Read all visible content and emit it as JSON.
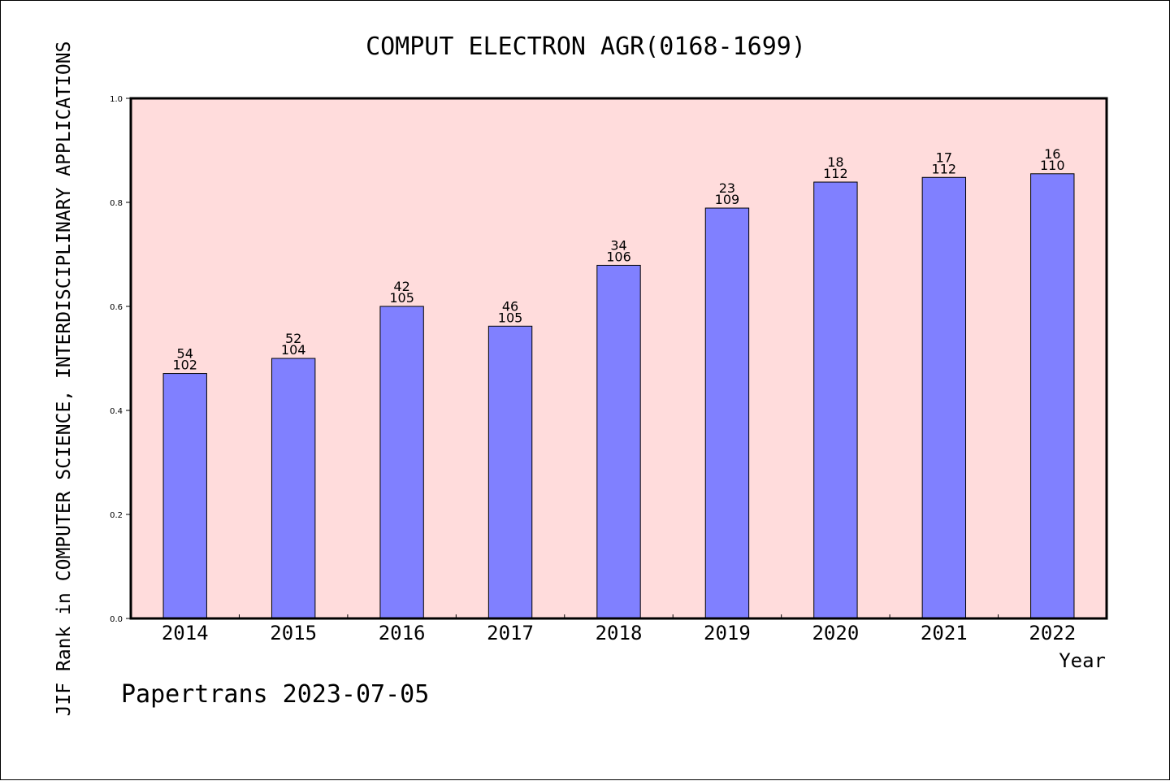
{
  "chart_data": {
    "type": "bar",
    "title": "COMPUT ELECTRON AGR(0168-1699)",
    "ylabel": "JIF Rank in COMPUTER SCIENCE, INTERDISCIPLINARY APPLICATIONS",
    "xlabel": "Year",
    "footer": "Papertrans 2023-07-05",
    "ylim": [
      0,
      1.0
    ],
    "yticks": [
      "0.0",
      "0.2",
      "0.4",
      "0.6",
      "0.8",
      "1.0"
    ],
    "categories": [
      "2014",
      "2015",
      "2016",
      "2017",
      "2018",
      "2019",
      "2020",
      "2021",
      "2022"
    ],
    "values": [
      0.471,
      0.5,
      0.6,
      0.562,
      0.679,
      0.789,
      0.839,
      0.848,
      0.855
    ],
    "rank": [
      "54",
      "52",
      "42",
      "46",
      "34",
      "23",
      "18",
      "17",
      "16"
    ],
    "total": [
      "102",
      "104",
      "105",
      "105",
      "106",
      "109",
      "112",
      "112",
      "110"
    ],
    "grid": false,
    "legend": "none",
    "colors": {
      "bar": "#8080ff",
      "plot_background": "#ffdcdc",
      "axis": "#000000"
    }
  }
}
